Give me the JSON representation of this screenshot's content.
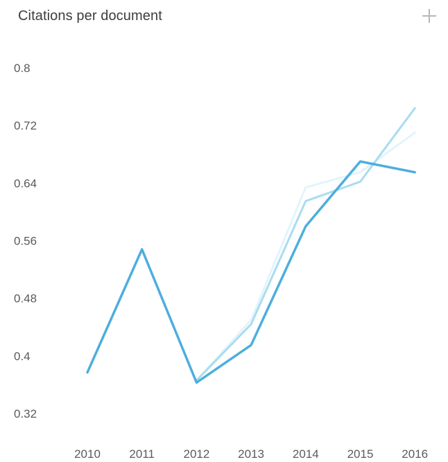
{
  "header": {
    "title": "Citations per document",
    "add_icon": "plus-icon"
  },
  "chart_data": {
    "type": "line",
    "title": "Citations per document",
    "xlabel": "",
    "ylabel": "",
    "categories": [
      "2010",
      "2011",
      "2012",
      "2013",
      "2014",
      "2015",
      "2016"
    ],
    "ylim": [
      0.32,
      0.8
    ],
    "yticks": [
      0.8,
      0.72,
      0.64,
      0.56,
      0.48,
      0.4,
      0.32
    ],
    "ytick_labels": [
      "0.8",
      "0.72",
      "0.64",
      "0.56",
      "0.48",
      "0.4",
      "0.32"
    ],
    "grid": false,
    "legend": "none",
    "series": [
      {
        "color": "#e3f4fb",
        "width": 3,
        "values": [
          null,
          null,
          0.366,
          0.45,
          0.634,
          0.655,
          0.71
        ]
      },
      {
        "color": "#a9dcf0",
        "width": 3,
        "values": [
          null,
          null,
          0.366,
          0.444,
          0.615,
          0.642,
          0.744
        ]
      },
      {
        "color": "#4daedd",
        "width": 3.5,
        "values": [
          0.377,
          0.548,
          0.363,
          0.415,
          0.58,
          0.67,
          0.655
        ]
      }
    ]
  }
}
